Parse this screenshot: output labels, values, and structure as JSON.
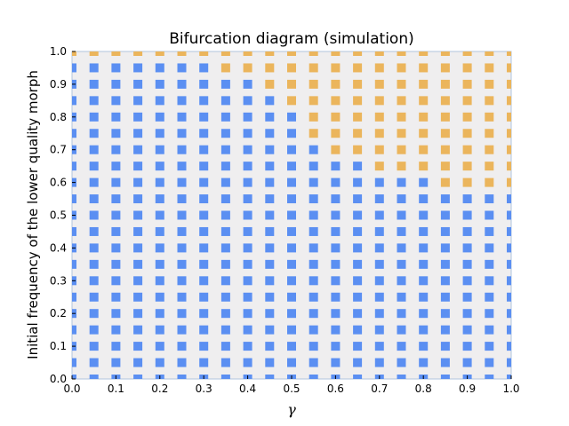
{
  "chart_data": {
    "type": "scatter",
    "title": "Bifurcation diagram (simulation)",
    "xlabel": "γ",
    "ylabel": "Initial frequency of the lower quality morph",
    "xlim": [
      0.0,
      1.0
    ],
    "ylim": [
      0.0,
      1.0
    ],
    "x_ticks": [
      "0.0",
      "0.1",
      "0.2",
      "0.3",
      "0.4",
      "0.5",
      "0.6",
      "0.7",
      "0.8",
      "0.9",
      "1.0"
    ],
    "y_ticks": [
      "0.0",
      "0.1",
      "0.2",
      "0.3",
      "0.4",
      "0.5",
      "0.6",
      "0.7",
      "0.8",
      "0.9",
      "1.0"
    ],
    "grid_step": 0.05,
    "series": [
      {
        "color": "#5b8ff2",
        "description": "points at or below the boundary"
      },
      {
        "color": "#ebb55c",
        "description": "points above the boundary"
      }
    ],
    "boundary": {
      "comment_free_rows": true,
      "x_threshold": [
        0.0,
        0.05,
        0.1,
        0.15,
        0.2,
        0.25,
        0.3,
        0.35,
        0.4,
        0.45,
        0.5,
        0.55,
        0.6,
        0.65,
        0.7,
        0.75,
        0.8,
        0.85,
        0.9,
        0.95,
        1.0
      ],
      "y_min_orange": [
        1.0,
        1.0,
        1.0,
        1.0,
        1.0,
        1.0,
        1.0,
        0.95,
        0.95,
        0.9,
        0.85,
        0.75,
        0.7,
        0.7,
        0.65,
        0.65,
        0.65,
        0.6,
        0.6,
        0.6,
        0.6
      ]
    },
    "background": "#efeeef",
    "grid": false,
    "legend": "none"
  }
}
